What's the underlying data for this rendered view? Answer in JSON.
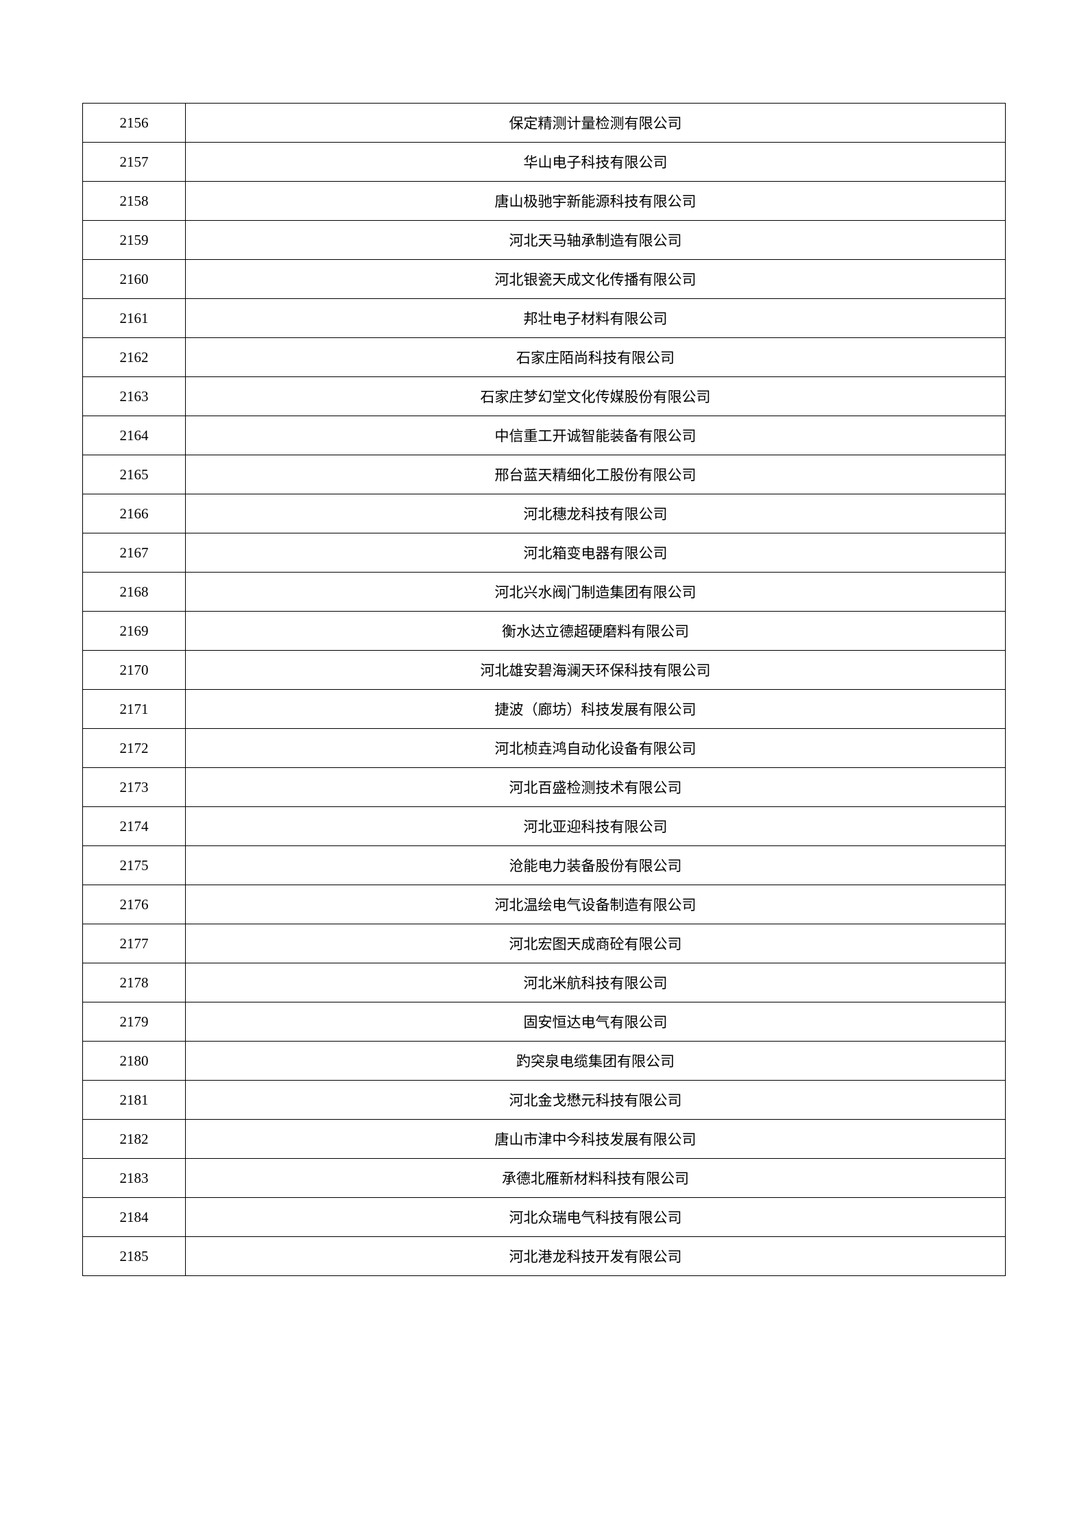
{
  "table": {
    "rows": [
      {
        "id": "2156",
        "name": "保定精测计量检测有限公司"
      },
      {
        "id": "2157",
        "name": "华山电子科技有限公司"
      },
      {
        "id": "2158",
        "name": "唐山极驰宇新能源科技有限公司"
      },
      {
        "id": "2159",
        "name": "河北天马轴承制造有限公司"
      },
      {
        "id": "2160",
        "name": "河北银瓷天成文化传播有限公司"
      },
      {
        "id": "2161",
        "name": "邦壮电子材料有限公司"
      },
      {
        "id": "2162",
        "name": "石家庄陌尚科技有限公司"
      },
      {
        "id": "2163",
        "name": "石家庄梦幻堂文化传媒股份有限公司"
      },
      {
        "id": "2164",
        "name": "中信重工开诚智能装备有限公司"
      },
      {
        "id": "2165",
        "name": "邢台蓝天精细化工股份有限公司"
      },
      {
        "id": "2166",
        "name": "河北穗龙科技有限公司"
      },
      {
        "id": "2167",
        "name": "河北箱变电器有限公司"
      },
      {
        "id": "2168",
        "name": "河北兴水阀门制造集团有限公司"
      },
      {
        "id": "2169",
        "name": "衡水达立德超硬磨料有限公司"
      },
      {
        "id": "2170",
        "name": "河北雄安碧海澜天环保科技有限公司"
      },
      {
        "id": "2171",
        "name": "捷波（廊坊）科技发展有限公司"
      },
      {
        "id": "2172",
        "name": "河北桢垚鸿自动化设备有限公司"
      },
      {
        "id": "2173",
        "name": "河北百盛检测技术有限公司"
      },
      {
        "id": "2174",
        "name": "河北亚迎科技有限公司"
      },
      {
        "id": "2175",
        "name": "沧能电力装备股份有限公司"
      },
      {
        "id": "2176",
        "name": "河北温绘电气设备制造有限公司"
      },
      {
        "id": "2177",
        "name": "河北宏图天成商砼有限公司"
      },
      {
        "id": "2178",
        "name": "河北米航科技有限公司"
      },
      {
        "id": "2179",
        "name": "固安恒达电气有限公司"
      },
      {
        "id": "2180",
        "name": "趵突泉电缆集团有限公司"
      },
      {
        "id": "2181",
        "name": "河北金戈懋元科技有限公司"
      },
      {
        "id": "2182",
        "name": "唐山市津中今科技发展有限公司"
      },
      {
        "id": "2183",
        "name": "承德北雁新材料科技有限公司"
      },
      {
        "id": "2184",
        "name": "河北众瑞电气科技有限公司"
      },
      {
        "id": "2185",
        "name": "河北港龙科技开发有限公司"
      }
    ]
  }
}
